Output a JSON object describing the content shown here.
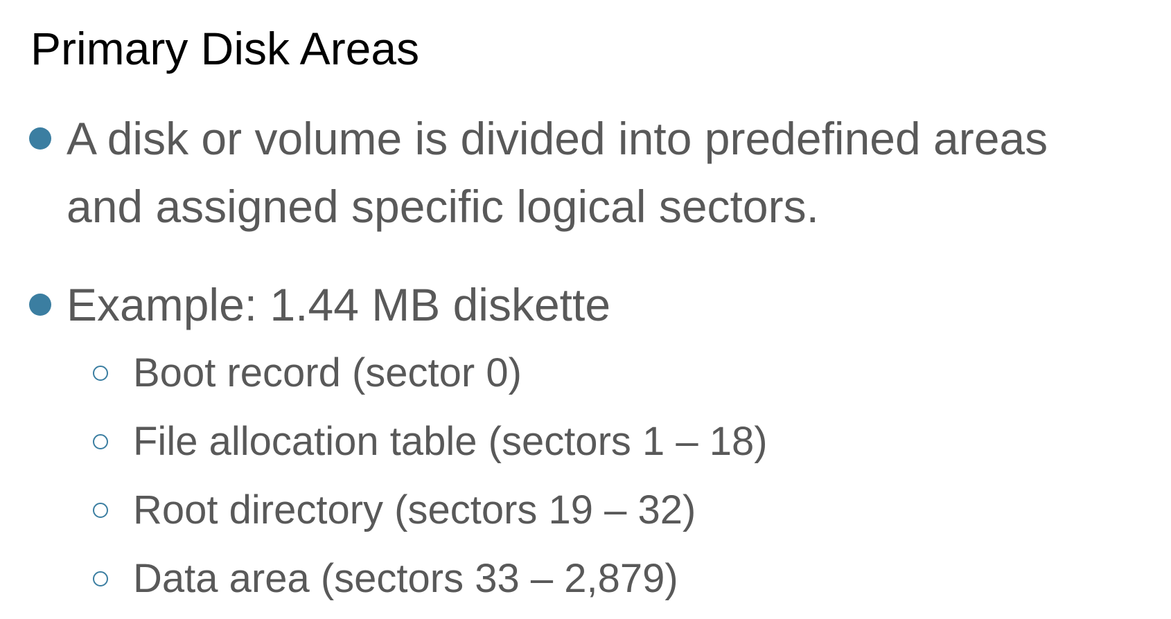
{
  "slide": {
    "title": "Primary Disk Areas",
    "bullets": [
      {
        "line1": "A disk or volume is divided into predefined areas",
        "line2": "and assigned specific logical sectors."
      },
      {
        "line1": "Example: 1.44 MB diskette",
        "sub": [
          "Boot record (sector 0)",
          "File allocation table (sectors 1 – 18)",
          "Root directory (sectors 19 – 32)",
          "Data area (sectors 33 – 2,879)"
        ]
      }
    ]
  },
  "colors": {
    "title": "#000000",
    "body_text": "#595959",
    "bullet_accent": "#3b7ea1",
    "background": "#ffffff"
  }
}
